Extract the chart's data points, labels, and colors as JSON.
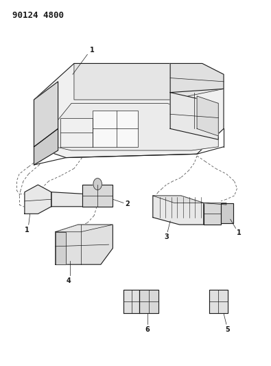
{
  "part_number": "90124 4800",
  "background_color": "#ffffff",
  "line_color": "#1a1a1a",
  "figsize": [
    3.95,
    5.33
  ],
  "dpi": 100,
  "lw_main": 0.8,
  "lw_thin": 0.5,
  "lw_dash": 0.6
}
